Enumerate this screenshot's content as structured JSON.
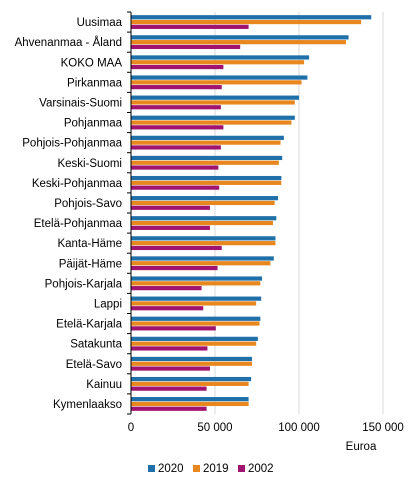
{
  "chart_data": {
    "type": "bar",
    "orientation": "horizontal",
    "categories": [
      "Uusimaa",
      "Ahvenanmaa - Åland",
      "KOKO MAA",
      "Pirkanmaa",
      "Varsinais-Suomi",
      "Pohjanmaa",
      "Pohjois-Pohjanmaa",
      "Keski-Suomi",
      "Keski-Pohjanmaa",
      "Pohjois-Savo",
      "Etelä-Pohjanmaa",
      "Kanta-Häme",
      "Päijät-Häme",
      "Pohjois-Karjala",
      "Lappi",
      "Etelä-Karjala",
      "Satakunta",
      "Etelä-Savo",
      "Kainuu",
      "Kymenlaakso"
    ],
    "series": [
      {
        "name": "2020",
        "color": "#1f6fa8",
        "values": [
          143000,
          129500,
          106000,
          105000,
          100000,
          97500,
          91000,
          90000,
          89500,
          87500,
          86500,
          86000,
          85000,
          78000,
          77500,
          77000,
          75500,
          72000,
          71500,
          70000
        ]
      },
      {
        "name": "2019",
        "color": "#e8871e",
        "values": [
          137000,
          128000,
          103000,
          101500,
          97500,
          95500,
          89000,
          88000,
          89500,
          85500,
          84500,
          86000,
          83000,
          77000,
          74500,
          76500,
          74500,
          72000,
          70000,
          70000
        ]
      },
      {
        "name": "2002",
        "color": "#a0136e",
        "values": [
          70000,
          65000,
          55000,
          54000,
          53500,
          55000,
          53500,
          52000,
          52500,
          47000,
          47000,
          54000,
          51500,
          42000,
          43000,
          50500,
          45500,
          47000,
          45000,
          45000
        ]
      }
    ],
    "xlim": [
      0,
      150000
    ],
    "x_ticks": [
      0,
      50000,
      100000,
      150000
    ],
    "x_tick_labels": [
      "0",
      "50 000",
      "100 000",
      "150 000"
    ],
    "xlabel": "Euroa",
    "ylabel": "",
    "title": "",
    "grid": "vertical",
    "legend": "bottom"
  }
}
